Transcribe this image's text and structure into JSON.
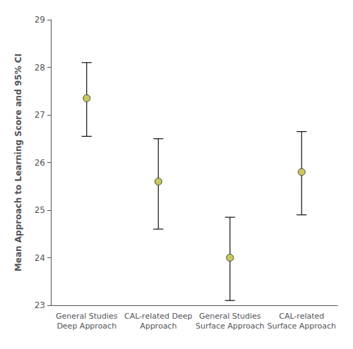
{
  "chart_data": {
    "type": "errorbar",
    "categories": [
      "General Studies\nDeep Approach",
      "CAL-related Deep\nApproach",
      "General Studies\nSurface Approach",
      "CAL-related\nSurface Approach"
    ],
    "values": [
      27.35,
      25.6,
      24.0,
      25.8
    ],
    "ci_lower": [
      26.55,
      24.6,
      23.1,
      24.9
    ],
    "ci_upper": [
      28.1,
      26.5,
      24.85,
      26.65
    ],
    "ylabel": "Mean Approach to Learning Score and 95% CI",
    "color": "#c8c860",
    "ylim": [
      23.0,
      29.0
    ],
    "yticks": [
      23,
      24,
      25,
      26,
      27,
      28,
      29
    ],
    "grid": false
  }
}
